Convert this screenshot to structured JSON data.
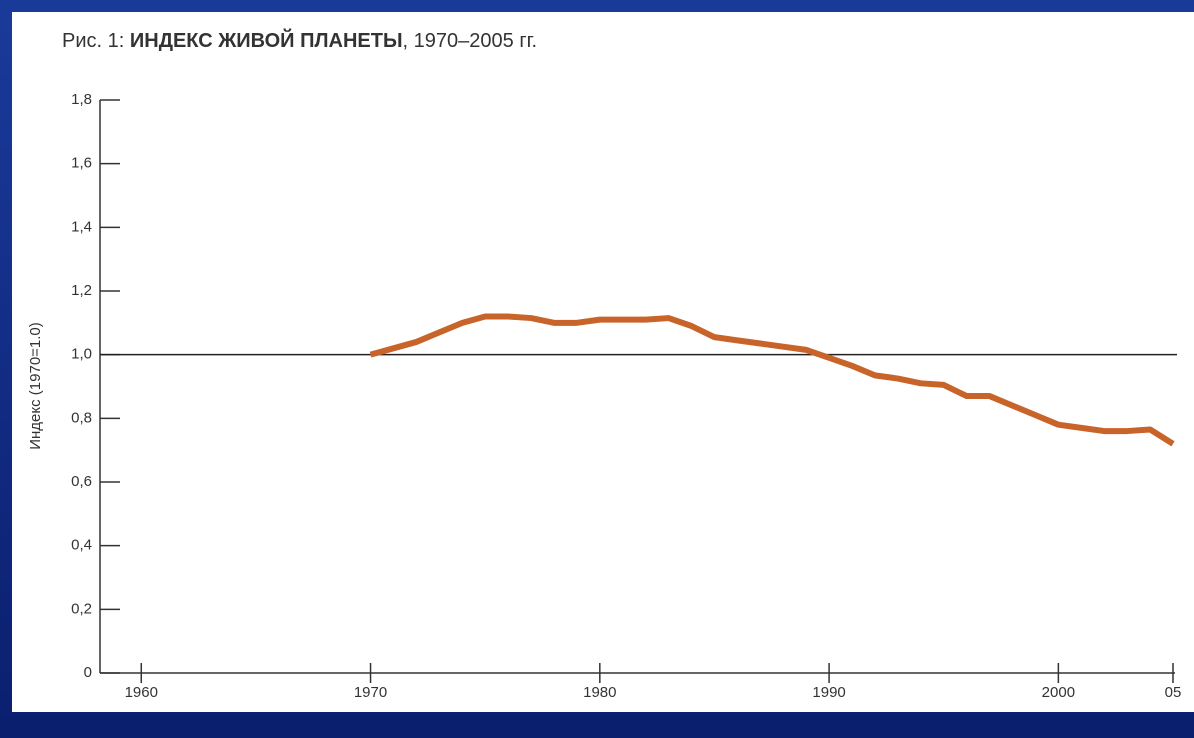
{
  "chart_data": {
    "type": "line",
    "title": [
      "Рис. 1:",
      "ИНДЕКС ЖИВОЙ ПЛАНЕТЫ",
      ", 1970–2005 гг."
    ],
    "y_label": "Индекс  (1970=1.0)",
    "x": [
      1970,
      1971,
      1972,
      1973,
      1974,
      1975,
      1976,
      1977,
      1978,
      1979,
      1980,
      1981,
      1982,
      1983,
      1984,
      1985,
      1986,
      1987,
      1988,
      1989,
      1990,
      1991,
      1992,
      1993,
      1994,
      1995,
      1996,
      1997,
      1998,
      1999,
      2000,
      2001,
      2002,
      2003,
      2004,
      2005
    ],
    "series": [
      {
        "name": "Индекс живой планеты",
        "color": "#c8642a",
        "values": [
          1.0,
          1.02,
          1.04,
          1.07,
          1.1,
          1.12,
          1.12,
          1.115,
          1.1,
          1.1,
          1.11,
          1.11,
          1.11,
          1.115,
          1.09,
          1.055,
          1.045,
          1.035,
          1.025,
          1.015,
          0.99,
          0.965,
          0.935,
          0.925,
          0.91,
          0.905,
          0.87,
          0.87,
          0.84,
          0.81,
          0.78,
          0.77,
          0.76,
          0.76,
          0.765,
          0.72
        ]
      }
    ],
    "xlim": [
      1958.2,
      2005
    ],
    "xticks": [
      1960,
      1970,
      1980,
      1990,
      2000,
      {
        "value": 2005,
        "label": "05"
      }
    ],
    "ylim": [
      0,
      1.8
    ],
    "yticks": [
      0,
      {
        "value": 0.2,
        "label": "0,2"
      },
      {
        "value": 0.4,
        "label": "0,4"
      },
      {
        "value": 0.6,
        "label": "0,6"
      },
      {
        "value": 0.8,
        "label": "0,8"
      },
      {
        "value": 1,
        "label": "1,0"
      },
      {
        "value": 1.2,
        "label": "1,2"
      },
      {
        "value": 1.4,
        "label": "1,4"
      },
      {
        "value": 1.6,
        "label": "1,6"
      },
      {
        "value": 1.8,
        "label": "1,8"
      }
    ],
    "reference_line": 1
  }
}
